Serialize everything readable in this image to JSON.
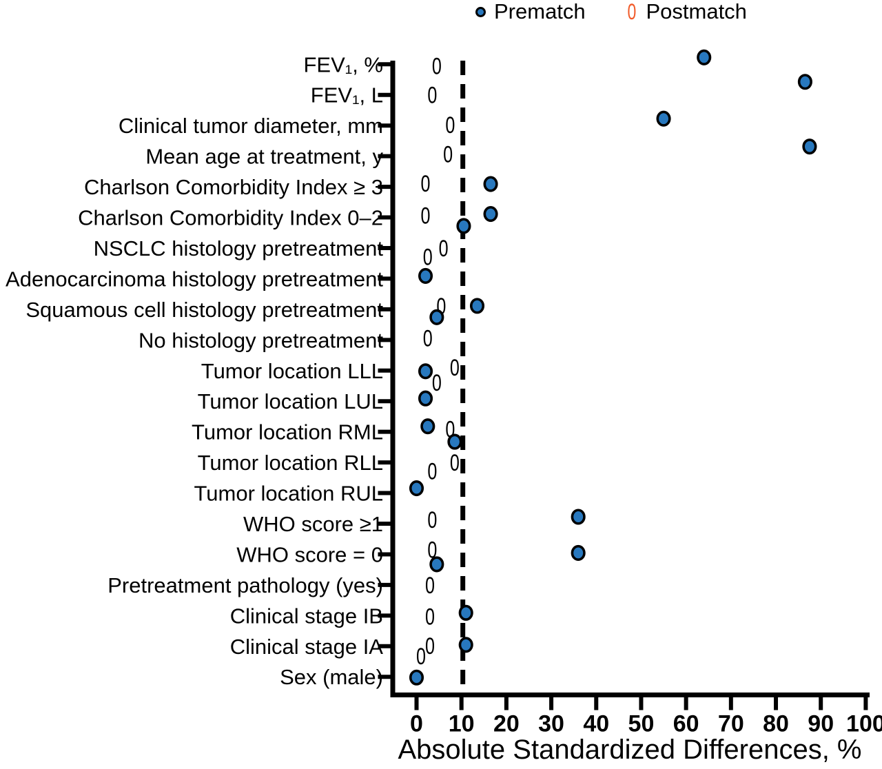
{
  "figure": {
    "legend": {
      "items": [
        {
          "label": "Prematch",
          "marker": "filled-circle",
          "glyph": "●",
          "color": "#2878BE"
        },
        {
          "label": "Postmatch",
          "marker": "zero-glyph",
          "glyph": "0",
          "color": "#F15B2A"
        }
      ]
    },
    "axis_title": "Absolute Standardized Differences, %"
  },
  "chart_data": {
    "type": "scatter",
    "subtype": "love-plot-horizontal-dot-plot",
    "title": "",
    "xlabel": "Absolute Standardized Differences, %",
    "ylabel": "",
    "xlim": [
      0,
      100
    ],
    "xticks": [
      0,
      10,
      20,
      30,
      40,
      50,
      60,
      70,
      80,
      90,
      100
    ],
    "reference_line_x": 10,
    "reference_line_style": "dashed",
    "grid": false,
    "legend_position": "top",
    "background": "#ffffff",
    "axis_color": "#000000",
    "categories": [
      "FEV₁, %",
      "FEV₁, L",
      "Clinical tumor diameter, mm",
      "Mean age at treatment, y",
      "Charlson Comorbidity Index ≥ 3",
      "Charlson Comorbidity Index 0–2",
      "NSCLC histology pretreatment",
      "Adenocarcinoma histology pretreatment",
      "Squamous cell histology pretreatment",
      "No histology pretreatment",
      "Tumor location LLL",
      "Tumor location LUL",
      "Tumor location RML",
      "Tumor location RLL",
      "Tumor location RUL",
      "WHO score ≥1",
      "WHO score = 0",
      "Pretreatment pathology (yes)",
      "Clinical stage IB",
      "Clinical stage IA",
      "Sex (male)"
    ],
    "series": [
      {
        "name": "Prematch",
        "marker": "filled-circle",
        "color": "#2878BE",
        "values": [
          64,
          86.5,
          55,
          87.5,
          16.5,
          16.5,
          10.5,
          2,
          13.5,
          4.5,
          2,
          2,
          2.5,
          8.5,
          0,
          36,
          36,
          4.5,
          11,
          11,
          0
        ]
      },
      {
        "name": "Postmatch",
        "marker": "zero-glyph",
        "color": "#F15B2A",
        "values": [
          4.5,
          3.5,
          7.5,
          7,
          2,
          2,
          6,
          2.5,
          5.5,
          2.5,
          8.5,
          4.5,
          7.5,
          8.5,
          3.5,
          3.5,
          3.5,
          3,
          3,
          3,
          1
        ]
      }
    ],
    "marker_y_jitter_px": {
      "prematch": [
        -10,
        -19,
        -10,
        -14,
        -4,
        -5,
        -32,
        -4,
        -5,
        -33,
        1,
        -4,
        -8,
        -30,
        -7,
        -10,
        -2,
        -30,
        -4,
        -2,
        1
      ],
      "postmatch": [
        3,
        1,
        0,
        -2,
        -4,
        -2,
        1,
        -31,
        -4,
        -2,
        -4,
        -26,
        -3,
        1,
        -31,
        -5,
        -6,
        1,
        2,
        0,
        -29
      ]
    }
  }
}
